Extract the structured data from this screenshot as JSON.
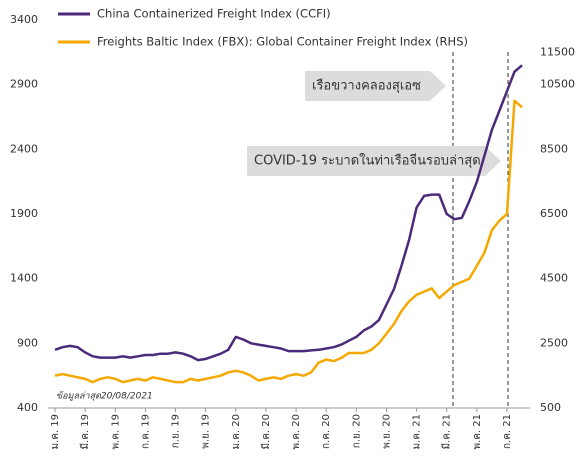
{
  "chart_data": {
    "type": "line",
    "categories": [
      "ม.ค. 19",
      null,
      null,
      null,
      "มี.ค. 19",
      null,
      null,
      null,
      "พ.ค. 19",
      null,
      null,
      null,
      "ก.ค. 19",
      null,
      null,
      null,
      "ก.ย. 19",
      null,
      null,
      null,
      "พ.ย. 19",
      null,
      null,
      null,
      "ม.ค. 20",
      null,
      null,
      null,
      "มี.ค. 20",
      null,
      null,
      null,
      "พ.ค. 20",
      null,
      null,
      null,
      "ก.ค. 20",
      null,
      null,
      null,
      "ก.ย. 20",
      null,
      null,
      null,
      "พ.ย. 20",
      null,
      null,
      null,
      "ม.ค. 21",
      null,
      null,
      null,
      "มี.ค. 21",
      null,
      null,
      null,
      "พ.ค. 21",
      null,
      null,
      null,
      "ก.ค. 21",
      null,
      null
    ],
    "series": [
      {
        "name": "China Containerized Freight Index (CCFI)",
        "color": "#4b2a7b",
        "values": [
          850,
          870,
          880,
          870,
          830,
          800,
          790,
          790,
          790,
          800,
          790,
          800,
          810,
          810,
          820,
          820,
          830,
          820,
          800,
          770,
          780,
          800,
          820,
          850,
          950,
          930,
          900,
          890,
          880,
          870,
          860,
          840,
          840,
          840,
          845,
          850,
          860,
          870,
          890,
          920,
          950,
          1000,
          1030,
          1080,
          1200,
          1320,
          1500,
          1700,
          1950,
          2040,
          2050,
          2050,
          1900,
          1860,
          1870,
          2000,
          2150,
          2350,
          2550,
          2700,
          2850,
          3000,
          3050
        ]
      },
      {
        "name": "Freights Baltic Index (FBX): Global Container Freight Index (RHS)",
        "color": "#f5a800",
        "axis": "y2",
        "values": [
          1500,
          1550,
          1500,
          1450,
          1400,
          1300,
          1400,
          1450,
          1400,
          1300,
          1350,
          1400,
          1350,
          1450,
          1400,
          1350,
          1300,
          1300,
          1400,
          1350,
          1400,
          1450,
          1500,
          1600,
          1650,
          1600,
          1500,
          1350,
          1400,
          1450,
          1400,
          1500,
          1550,
          1500,
          1600,
          1900,
          2000,
          1950,
          2050,
          2200,
          2200,
          2200,
          2300,
          2500,
          2800,
          3100,
          3500,
          3800,
          4000,
          4100,
          4200,
          3900,
          4100,
          4300,
          4400,
          4500,
          4900,
          5300,
          6000,
          6300,
          6500,
          10000,
          9800
        ]
      }
    ],
    "ylim": [
      400,
      3400
    ],
    "yticks": [
      400,
      900,
      1400,
      1900,
      2400,
      2900,
      3400
    ],
    "y2lim": [
      500,
      12500
    ],
    "y2ticks": [
      500,
      2500,
      4500,
      6500,
      8500,
      10500,
      11500
    ],
    "annotations": [
      "เรือขวางคลองสุเอซ",
      "COVID-19 ระบาดในท่าเรือจีนรอบล่าสุด"
    ],
    "note": "ข้อมูลล่าสุด20/08/2021"
  }
}
